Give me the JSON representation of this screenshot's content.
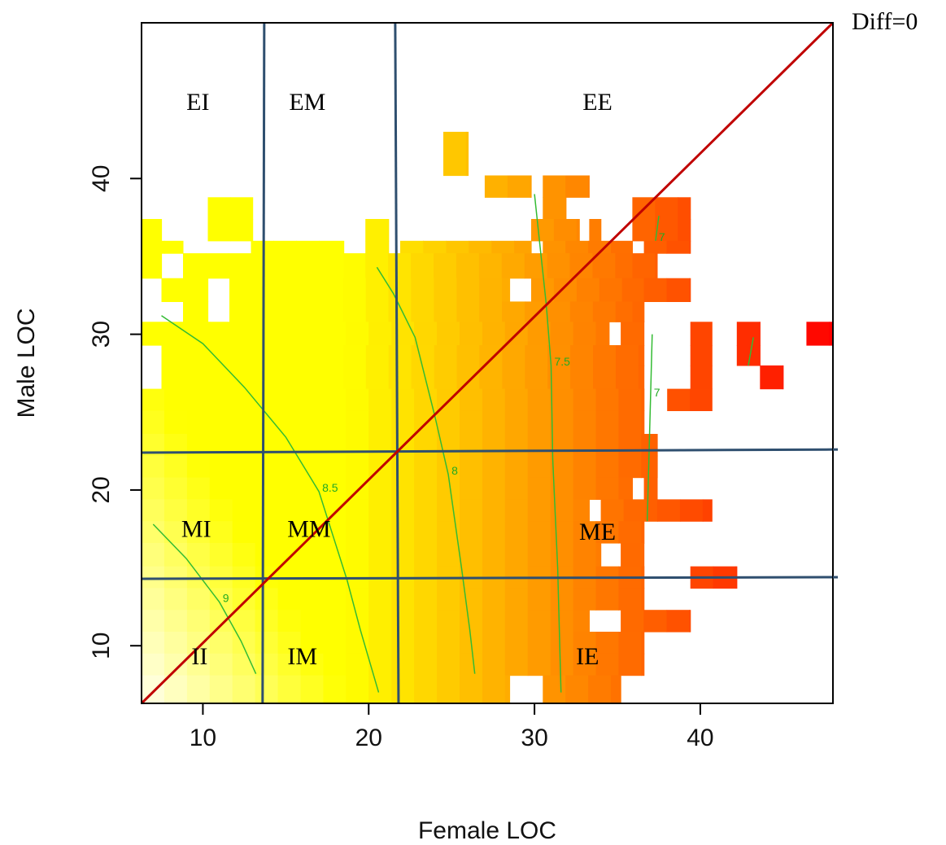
{
  "chart_data": {
    "type": "heatmap",
    "xlabel": "Female LOC",
    "ylabel": "Male LOC",
    "xlim": [
      6.3,
      48
    ],
    "ylim": [
      6.3,
      50
    ],
    "x_ticks": [
      10,
      20,
      30,
      40
    ],
    "y_ticks": [
      10,
      20,
      30,
      40
    ],
    "color_scale": {
      "low": "#fffff0",
      "mid": "#ffff00",
      "high": "#ff0000"
    },
    "heatmap_rows": [
      {
        "y": [
          40.2,
          43.0
        ],
        "segments": [
          [
            24.5,
            26.0
          ]
        ]
      },
      {
        "y": [
          38.8,
          40.2
        ],
        "segments": [
          [
            27.0,
            29.8
          ],
          [
            30.5,
            33.3
          ]
        ]
      },
      {
        "y": [
          37.4,
          38.8
        ],
        "segments": [
          [
            10.3,
            13.0
          ],
          [
            30.5,
            31.9
          ],
          [
            35.9,
            39.4
          ]
        ]
      },
      {
        "y": [
          36.0,
          37.4
        ],
        "segments": [
          [
            6.3,
            7.5
          ],
          [
            10.3,
            13.0
          ],
          [
            19.8,
            21.2
          ],
          [
            29.8,
            32.7
          ],
          [
            33.3,
            34.0
          ],
          [
            35.9,
            39.4
          ]
        ]
      },
      {
        "y": [
          35.2,
          36.0
        ],
        "segments": [
          [
            6.3,
            8.8
          ],
          [
            12.9,
            18.5
          ],
          [
            19.8,
            21.2
          ],
          [
            21.9,
            23.3
          ],
          [
            23.3,
            29.8
          ],
          [
            30.5,
            35.9
          ],
          [
            36.6,
            39.4
          ]
        ]
      },
      {
        "y": [
          33.6,
          35.2
        ],
        "segments": [
          [
            6.3,
            7.5
          ],
          [
            8.8,
            18.5
          ],
          [
            18.5,
            19.8
          ],
          [
            19.8,
            35.9
          ],
          [
            35.9,
            37.4
          ]
        ]
      },
      {
        "y": [
          32.1,
          33.6
        ],
        "segments": [
          [
            7.5,
            10.3
          ],
          [
            11.6,
            28.5
          ],
          [
            29.8,
            36.6
          ],
          [
            36.6,
            39.4
          ]
        ]
      },
      {
        "y": [
          30.8,
          32.1
        ],
        "segments": [
          [
            8.8,
            10.3
          ],
          [
            11.6,
            35.9
          ],
          [
            35.9,
            36.6
          ]
        ]
      },
      {
        "y": [
          29.3,
          30.8
        ],
        "segments": [
          [
            6.3,
            34.5
          ],
          [
            35.2,
            36.6
          ],
          [
            39.4,
            40.7
          ],
          [
            42.2,
            43.6
          ],
          [
            46.4,
            48.0
          ]
        ]
      },
      {
        "y": [
          28.0,
          29.3
        ],
        "segments": [
          [
            7.5,
            36.6
          ],
          [
            39.4,
            40.7
          ],
          [
            42.2,
            43.6
          ]
        ]
      },
      {
        "y": [
          26.5,
          28.0
        ],
        "segments": [
          [
            7.5,
            36.6
          ],
          [
            39.4,
            40.7
          ],
          [
            43.6,
            45.0
          ]
        ]
      },
      {
        "y": [
          25.1,
          26.5
        ],
        "segments": [
          [
            6.3,
            36.6
          ],
          [
            38.0,
            40.7
          ]
        ]
      },
      {
        "y": [
          23.6,
          25.1
        ],
        "segments": [
          [
            6.3,
            36.6
          ]
        ]
      },
      {
        "y": [
          22.2,
          23.6
        ],
        "segments": [
          [
            6.3,
            37.4
          ]
        ]
      },
      {
        "y": [
          20.8,
          22.2
        ],
        "segments": [
          [
            6.3,
            37.4
          ]
        ]
      },
      {
        "y": [
          19.4,
          20.8
        ],
        "segments": [
          [
            6.3,
            35.9
          ],
          [
            35.2,
            35.9
          ],
          [
            36.6,
            37.4
          ]
        ]
      },
      {
        "y": [
          18.0,
          19.4
        ],
        "segments": [
          [
            6.3,
            33.3
          ],
          [
            34.0,
            37.4
          ],
          [
            37.4,
            40.7
          ]
        ]
      },
      {
        "y": [
          16.6,
          18.0
        ],
        "segments": [
          [
            6.3,
            36.6
          ]
        ]
      },
      {
        "y": [
          15.1,
          16.6
        ],
        "segments": [
          [
            6.3,
            34.0
          ],
          [
            35.2,
            36.6
          ]
        ]
      },
      {
        "y": [
          13.7,
          15.1
        ],
        "segments": [
          [
            6.3,
            36.6
          ],
          [
            39.4,
            42.2
          ]
        ]
      },
      {
        "y": [
          12.3,
          13.7
        ],
        "segments": [
          [
            6.3,
            36.6
          ]
        ]
      },
      {
        "y": [
          10.9,
          12.3
        ],
        "segments": [
          [
            6.3,
            33.3
          ],
          [
            35.2,
            36.6
          ],
          [
            36.6,
            39.4
          ]
        ]
      },
      {
        "y": [
          9.5,
          10.9
        ],
        "segments": [
          [
            6.3,
            36.6
          ]
        ]
      },
      {
        "y": [
          8.1,
          9.5
        ],
        "segments": [
          [
            6.3,
            36.6
          ]
        ]
      },
      {
        "y": [
          6.3,
          8.1
        ],
        "segments": [
          [
            6.3,
            28.5
          ],
          [
            30.5,
            35.2
          ]
        ]
      }
    ],
    "contours": [
      {
        "label": "9",
        "points": [
          [
            7.0,
            17.8
          ],
          [
            9.0,
            15.6
          ],
          [
            11.0,
            12.8
          ],
          [
            12.3,
            10.3
          ],
          [
            13.2,
            8.2
          ]
        ]
      },
      {
        "label": "8.5",
        "points": [
          [
            7.5,
            31.2
          ],
          [
            10.0,
            29.4
          ],
          [
            12.5,
            26.6
          ],
          [
            15.0,
            23.4
          ],
          [
            17.0,
            19.9
          ],
          [
            18.7,
            14.2
          ],
          [
            19.5,
            11.0
          ],
          [
            20.6,
            7.0
          ]
        ]
      },
      {
        "label": "8",
        "points": [
          [
            20.5,
            34.3
          ],
          [
            21.5,
            32.6
          ],
          [
            22.8,
            29.8
          ],
          [
            24.0,
            24.7
          ],
          [
            24.8,
            21.0
          ],
          [
            25.6,
            15.0
          ],
          [
            26.1,
            11.0
          ],
          [
            26.4,
            8.2
          ]
        ]
      },
      {
        "label": "7.5",
        "points": [
          [
            30.0,
            39.0
          ],
          [
            30.3,
            36.0
          ],
          [
            30.7,
            32.0
          ],
          [
            31.0,
            28.0
          ],
          [
            31.1,
            22.0
          ],
          [
            31.4,
            15.0
          ],
          [
            31.6,
            7.0
          ]
        ]
      },
      {
        "label": "7",
        "points": [
          [
            37.5,
            37.6
          ],
          [
            37.3,
            36.0
          ]
        ]
      },
      {
        "label": "7",
        "points": [
          [
            37.1,
            30.0
          ],
          [
            37.0,
            26.0
          ],
          [
            36.8,
            18.0
          ]
        ]
      },
      {
        "label": "",
        "points": [
          [
            43.2,
            29.8
          ],
          [
            42.9,
            28.0
          ]
        ]
      }
    ],
    "reference_lines": {
      "diagonal": {
        "label": "Diff=0",
        "from": [
          6.3,
          6.3
        ],
        "to": [
          48.0,
          50.0
        ]
      },
      "vertical": [
        {
          "top": 13.7,
          "bottom": 13.6
        },
        {
          "top": 21.6,
          "bottom": 21.8
        }
      ],
      "horizontal": [
        {
          "left": 22.4,
          "right": 22.6
        },
        {
          "left": 14.3,
          "right": 14.4
        }
      ]
    },
    "region_labels": [
      {
        "text": "EI",
        "x": 9.7,
        "y": 44.4
      },
      {
        "text": "EM",
        "x": 16.3,
        "y": 44.4
      },
      {
        "text": "EE",
        "x": 33.8,
        "y": 44.4
      },
      {
        "text": "MI",
        "x": 9.6,
        "y": 17.0
      },
      {
        "text": "MM",
        "x": 16.4,
        "y": 17.0
      },
      {
        "text": "ME",
        "x": 33.8,
        "y": 16.8
      },
      {
        "text": "II",
        "x": 9.8,
        "y": 8.8
      },
      {
        "text": "IM",
        "x": 16.0,
        "y": 8.8
      },
      {
        "text": "IE",
        "x": 33.2,
        "y": 8.8
      }
    ]
  }
}
